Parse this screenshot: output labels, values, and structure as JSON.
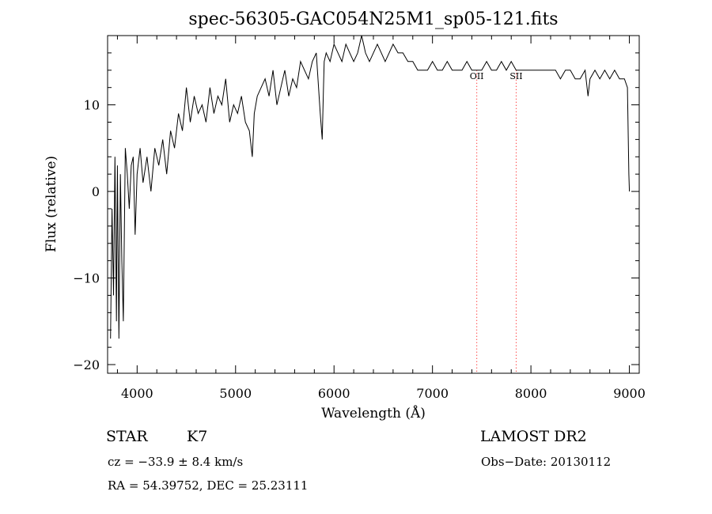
{
  "chart_data": {
    "type": "line",
    "title": "spec-56305-GAC054N25M1_sp05-121.fits",
    "xlabel": "Wavelength (Å)",
    "ylabel": "Flux (relative)",
    "xlim": [
      3700,
      9100
    ],
    "ylim": [
      -21,
      18
    ],
    "x_ticks": [
      4000,
      5000,
      6000,
      7000,
      8000,
      9000
    ],
    "y_ticks": [
      -20,
      -10,
      0,
      10
    ],
    "grid": false,
    "line_color": "#000000",
    "marker_color": "#ff0000",
    "series": [
      {
        "x": [
          3730,
          3745,
          3760,
          3775,
          3790,
          3800,
          3815,
          3830,
          3845,
          3860,
          3880,
          3900,
          3920,
          3940,
          3960,
          3980,
          4000,
          4030,
          4060,
          4100,
          4140,
          4180,
          4220,
          4260,
          4300,
          4340,
          4380,
          4420,
          4460,
          4500,
          4540,
          4580,
          4620,
          4660,
          4700,
          4740,
          4780,
          4820,
          4860,
          4900,
          4940,
          4980,
          5020,
          5060,
          5100,
          5140,
          5170,
          5190,
          5220,
          5260,
          5300,
          5340,
          5380,
          5420,
          5460,
          5500,
          5540,
          5580,
          5620,
          5660,
          5700,
          5740,
          5780,
          5820,
          5860,
          5880,
          5893,
          5900,
          5920,
          5960,
          6000,
          6040,
          6080,
          6120,
          6160,
          6200,
          6240,
          6280,
          6300,
          6320,
          6360,
          6400,
          6440,
          6480,
          6520,
          6560,
          6600,
          6650,
          6700,
          6750,
          6800,
          6850,
          6900,
          6950,
          7000,
          7050,
          7100,
          7150,
          7200,
          7250,
          7300,
          7350,
          7400,
          7450,
          7500,
          7550,
          7600,
          7650,
          7700,
          7750,
          7800,
          7850,
          7900,
          7950,
          8000,
          8050,
          8100,
          8150,
          8200,
          8250,
          8300,
          8350,
          8400,
          8450,
          8500,
          8550,
          8580,
          8600,
          8650,
          8700,
          8750,
          8800,
          8850,
          8900,
          8950,
          8980,
          8995,
          9000
        ],
        "y": [
          -17,
          -2,
          -12,
          4,
          -15,
          3,
          -17,
          2,
          -8,
          -15,
          5,
          2,
          -2,
          3,
          4,
          -5,
          2,
          5,
          1,
          4,
          0,
          5,
          3,
          6,
          2,
          7,
          5,
          9,
          7,
          12,
          8,
          11,
          9,
          10,
          8,
          12,
          9,
          11,
          10,
          13,
          8,
          10,
          9,
          11,
          8,
          7,
          4,
          9,
          11,
          12,
          13,
          11,
          14,
          10,
          12,
          14,
          11,
          13,
          12,
          15,
          14,
          13,
          15,
          16,
          9,
          6,
          12,
          15,
          16,
          15,
          17,
          16,
          15,
          17,
          16,
          15,
          16,
          18,
          17,
          16,
          15,
          16,
          17,
          16,
          15,
          16,
          17,
          16,
          16,
          15,
          15,
          14,
          14,
          14,
          15,
          14,
          14,
          15,
          14,
          14,
          14,
          15,
          14,
          14,
          14,
          15,
          14,
          14,
          15,
          14,
          15,
          14,
          14,
          14,
          14,
          14,
          14,
          14,
          14,
          14,
          13,
          14,
          14,
          13,
          13,
          14,
          11,
          13,
          14,
          13,
          14,
          13,
          14,
          13,
          13,
          12,
          2,
          0
        ]
      }
    ],
    "annotations": [
      {
        "label": "OII",
        "x": 7450
      },
      {
        "label": "SII",
        "x": 7850
      }
    ]
  },
  "footer": {
    "class_label": "STAR",
    "subclass": "K7",
    "survey": "LAMOST DR2",
    "cz": "cz = −33.9 ± 8.4 km/s",
    "obs_date": "Obs−Date: 20130112",
    "radec": "RA =  54.39752, DEC =  25.23111"
  }
}
